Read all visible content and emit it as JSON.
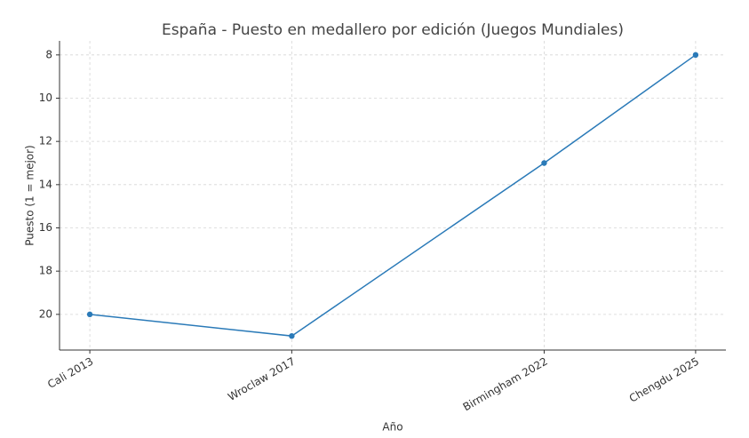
{
  "chart_data": {
    "type": "line",
    "title": "España - Puesto en medallero por edición (Juegos Mundiales)",
    "x_label": "Año",
    "y_label": "Puesto (1 = mejor)",
    "x": [
      2013,
      2017,
      2022,
      2025
    ],
    "series": [
      {
        "name": "España",
        "color": "#2a7ab8",
        "values": [
          20,
          21,
          13,
          8
        ]
      }
    ],
    "xlim": [
      2012.4,
      2025.6
    ],
    "xticks": [
      {
        "value": 2013,
        "label": "Cali 2013"
      },
      {
        "value": 2017,
        "label": "Wroclaw 2017"
      },
      {
        "value": 2022,
        "label": "Birmingham 2022"
      },
      {
        "value": 2025,
        "label": "Chengdu 2025"
      }
    ],
    "ylim": [
      21.65,
      7.35
    ],
    "yticks": [
      8,
      10,
      12,
      14,
      16,
      18,
      20
    ],
    "grid": true
  }
}
